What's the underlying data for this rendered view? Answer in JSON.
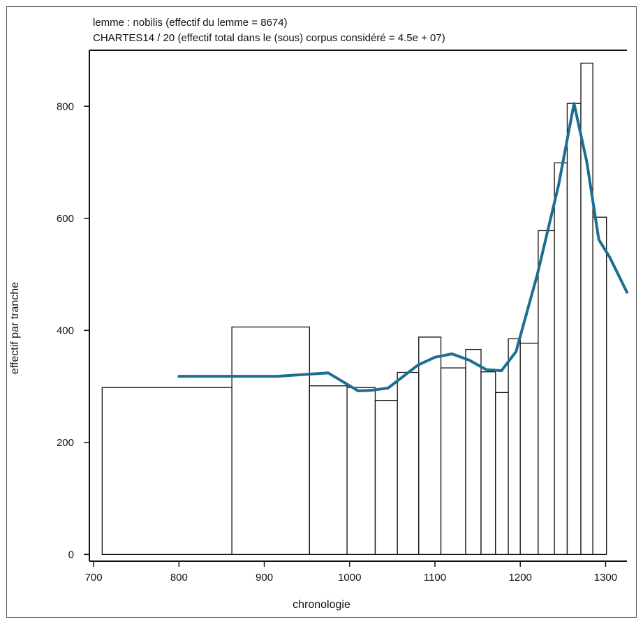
{
  "chart_data": {
    "type": "bar",
    "title_lines": [
      "lemme : nobilis (effectif du lemme = 8674)",
      "CHARTES14 / 20 (effectif total dans le (sous) corpus considéré = 4.5e + 07)"
    ],
    "xlabel": "chronologie",
    "ylabel": "effectif par tranche",
    "xlim": [
      695,
      1325
    ],
    "ylim": [
      -12,
      900
    ],
    "xticks": [
      700,
      800,
      900,
      1000,
      1100,
      1200,
      1300
    ],
    "yticks": [
      0,
      200,
      400,
      600,
      800
    ],
    "grid": false,
    "bins": [
      {
        "x0": 710,
        "x1": 862,
        "value": 298
      },
      {
        "x0": 862,
        "x1": 953,
        "value": 406
      },
      {
        "x0": 953,
        "x1": 997,
        "value": 301
      },
      {
        "x0": 997,
        "x1": 1030,
        "value": 298
      },
      {
        "x0": 1030,
        "x1": 1056,
        "value": 275
      },
      {
        "x0": 1056,
        "x1": 1081,
        "value": 325
      },
      {
        "x0": 1081,
        "x1": 1107,
        "value": 388
      },
      {
        "x0": 1107,
        "x1": 1136,
        "value": 333
      },
      {
        "x0": 1136,
        "x1": 1154,
        "value": 366
      },
      {
        "x0": 1154,
        "x1": 1171,
        "value": 326
      },
      {
        "x0": 1171,
        "x1": 1186,
        "value": 289
      },
      {
        "x0": 1186,
        "x1": 1200,
        "value": 385
      },
      {
        "x0": 1200,
        "x1": 1221,
        "value": 377
      },
      {
        "x0": 1221,
        "x1": 1240,
        "value": 578
      },
      {
        "x0": 1240,
        "x1": 1255,
        "value": 699
      },
      {
        "x0": 1255,
        "x1": 1271,
        "value": 805
      },
      {
        "x0": 1271,
        "x1": 1285,
        "value": 877
      },
      {
        "x0": 1285,
        "x1": 1301,
        "value": 602
      }
    ],
    "smooth_line": {
      "color": "#1c6e92",
      "points": [
        [
          800,
          318
        ],
        [
          860,
          318
        ],
        [
          915,
          318
        ],
        [
          975,
          324
        ],
        [
          1010,
          292
        ],
        [
          1025,
          293
        ],
        [
          1045,
          297
        ],
        [
          1080,
          338
        ],
        [
          1100,
          352
        ],
        [
          1120,
          358
        ],
        [
          1140,
          347
        ],
        [
          1160,
          330
        ],
        [
          1178,
          328
        ],
        [
          1195,
          362
        ],
        [
          1220,
          500
        ],
        [
          1245,
          660
        ],
        [
          1263,
          805
        ],
        [
          1278,
          700
        ],
        [
          1292,
          562
        ],
        [
          1305,
          530
        ],
        [
          1325,
          468
        ]
      ]
    },
    "bar_fill": "#ffffff",
    "bar_stroke": "#111111"
  }
}
